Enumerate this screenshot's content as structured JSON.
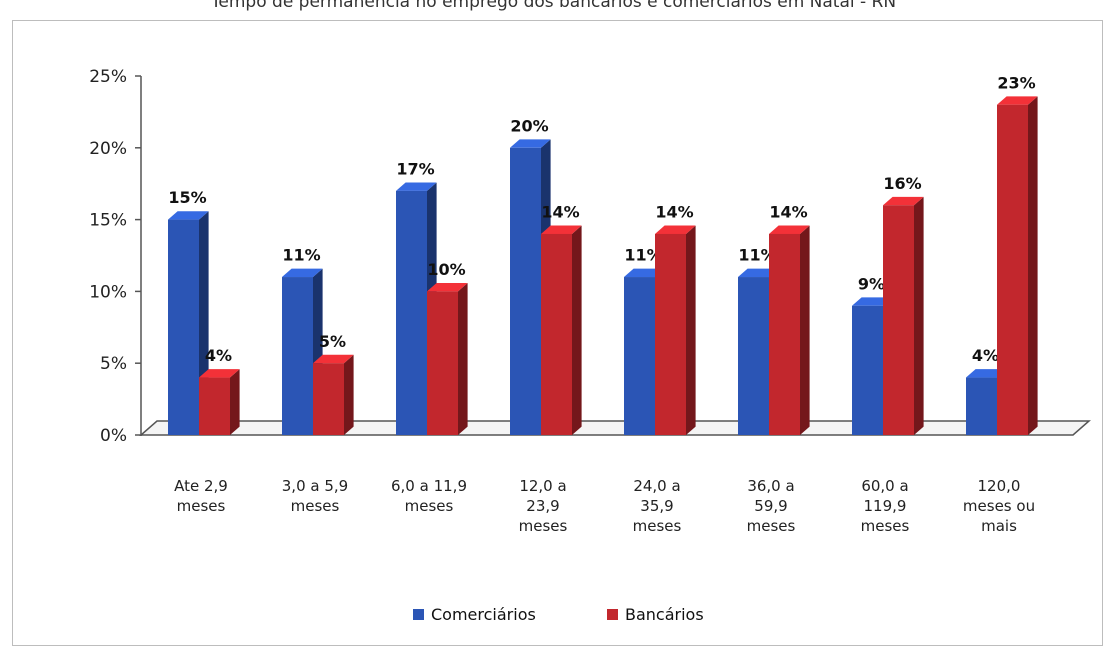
{
  "header_text": "Tempo de permanência no emprego dos bancários e comerciários em Natal - RN",
  "chart_data": {
    "type": "bar",
    "categories": [
      [
        "Ate 2,9",
        "meses"
      ],
      [
        "3,0 a 5,9",
        "meses"
      ],
      [
        "6,0 a 11,9",
        "meses"
      ],
      [
        "12,0 a",
        "23,9",
        "meses"
      ],
      [
        "24,0 a",
        "35,9",
        "meses"
      ],
      [
        "36,0 a",
        "59,9",
        "meses"
      ],
      [
        "60,0 a",
        "119,9",
        "meses"
      ],
      [
        "120,0",
        "meses ou",
        "mais"
      ]
    ],
    "series": [
      {
        "name": "Comerciários",
        "values": [
          15,
          11,
          17,
          20,
          11,
          11,
          9,
          4
        ],
        "color": "#2b55b5"
      },
      {
        "name": "Bancários",
        "values": [
          4,
          5,
          10,
          14,
          14,
          14,
          16,
          23
        ],
        "color": "#c2272d"
      }
    ],
    "ylim": [
      0,
      25
    ],
    "yticks": [
      "0%",
      "5%",
      "10%",
      "15%",
      "20%",
      "25%"
    ],
    "value_suffix": "%",
    "legend_position": "bottom"
  }
}
